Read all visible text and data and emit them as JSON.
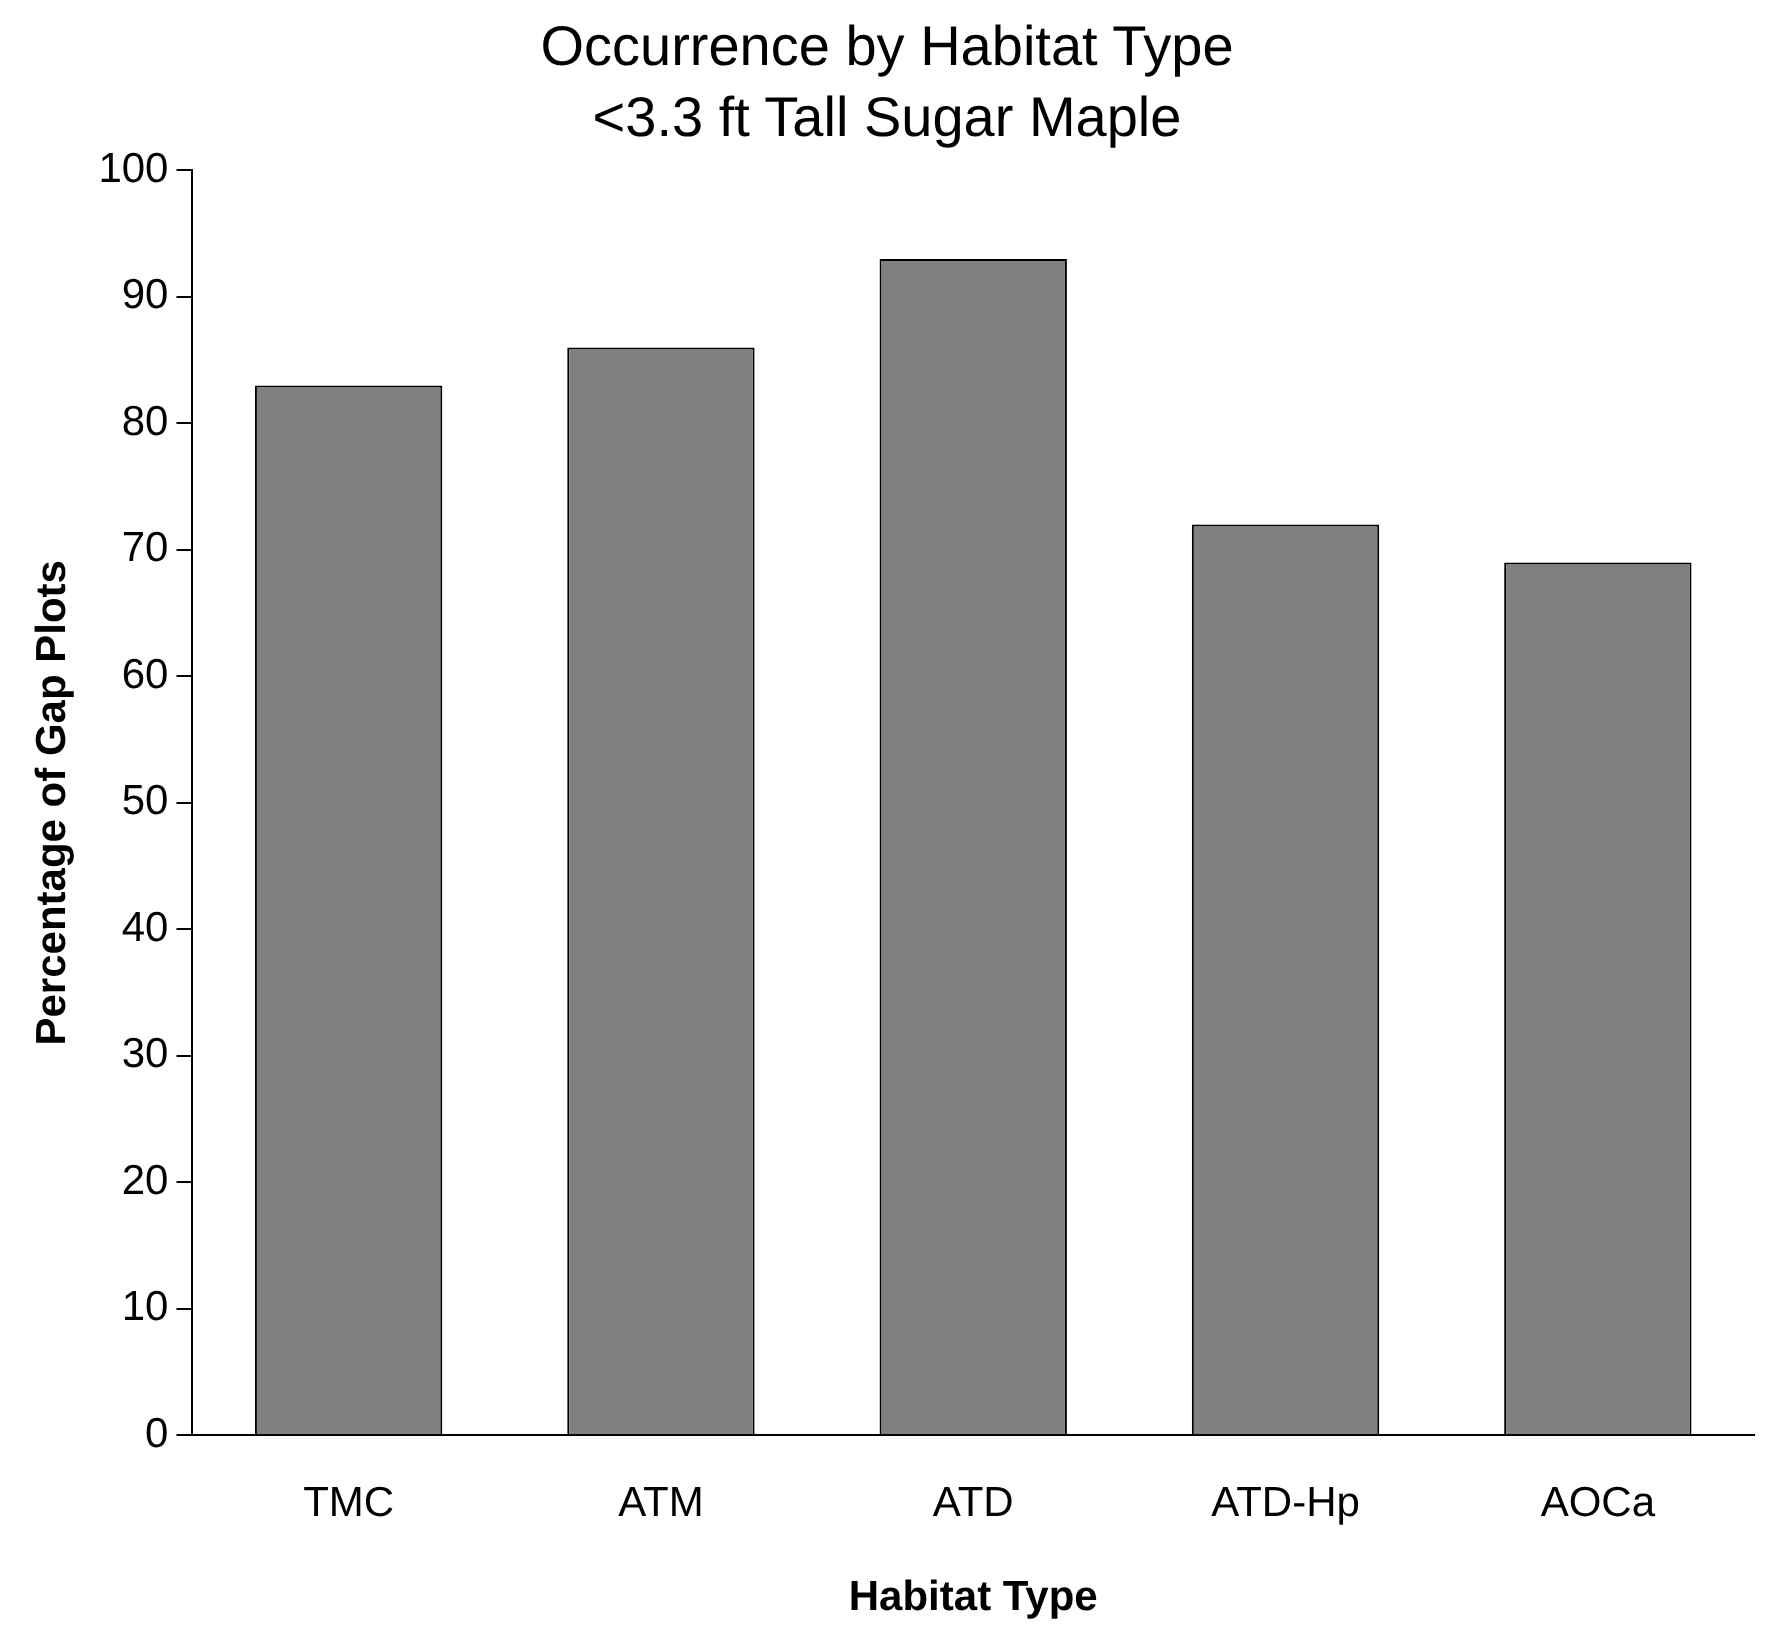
{
  "chart_data": {
    "type": "bar",
    "title": "Occurrence by Habitat Type",
    "subtitle": "<3.3 ft Tall Sugar Maple",
    "xlabel": "Habitat Type",
    "ylabel": "Percentage of Gap Plots",
    "categories": [
      "TMC",
      "ATM",
      "ATD",
      "ATD-Hp",
      "AOCa"
    ],
    "values": [
      83,
      86,
      93,
      72,
      69
    ],
    "color": "#808080",
    "ylim": [
      0,
      100
    ],
    "yticks": [
      0,
      10,
      20,
      30,
      40,
      50,
      60,
      70,
      80,
      90,
      100
    ],
    "grid": false,
    "legend": false
  }
}
